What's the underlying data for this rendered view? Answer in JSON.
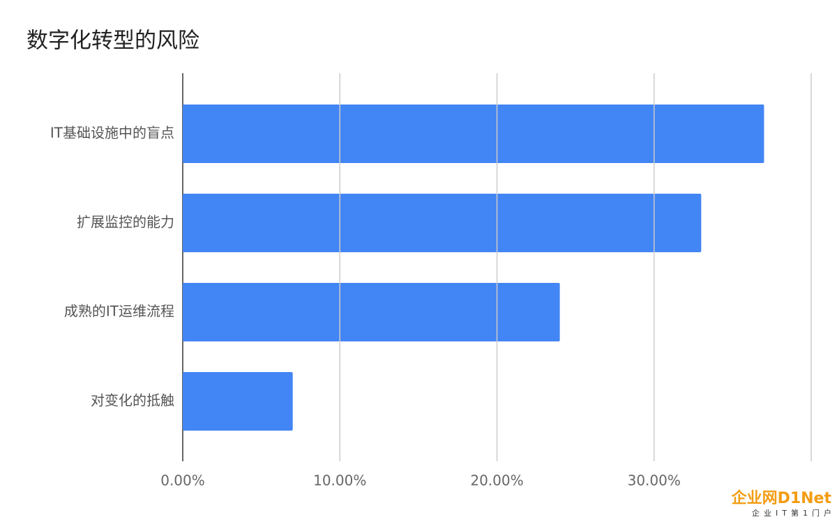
{
  "chart_data": {
    "type": "hbar",
    "title": "数字化转型的风险",
    "categories": [
      "IT基础设施中的盲点",
      "扩展监控的能力",
      "成熟的IT运维流程",
      "对变化的抵触"
    ],
    "values": [
      37,
      33,
      24,
      7
    ],
    "color": "#4285f4",
    "xlim": [
      0,
      40
    ],
    "xticks": [
      {
        "value": 0,
        "label": "0.00%"
      },
      {
        "value": 10,
        "label": "10.00%"
      },
      {
        "value": 20,
        "label": "20.00%"
      },
      {
        "value": 30,
        "label": "30.00%"
      }
    ],
    "grid": true
  },
  "watermark": {
    "logo": "企业网D1Net",
    "slogan": "企业IT第1门户"
  }
}
